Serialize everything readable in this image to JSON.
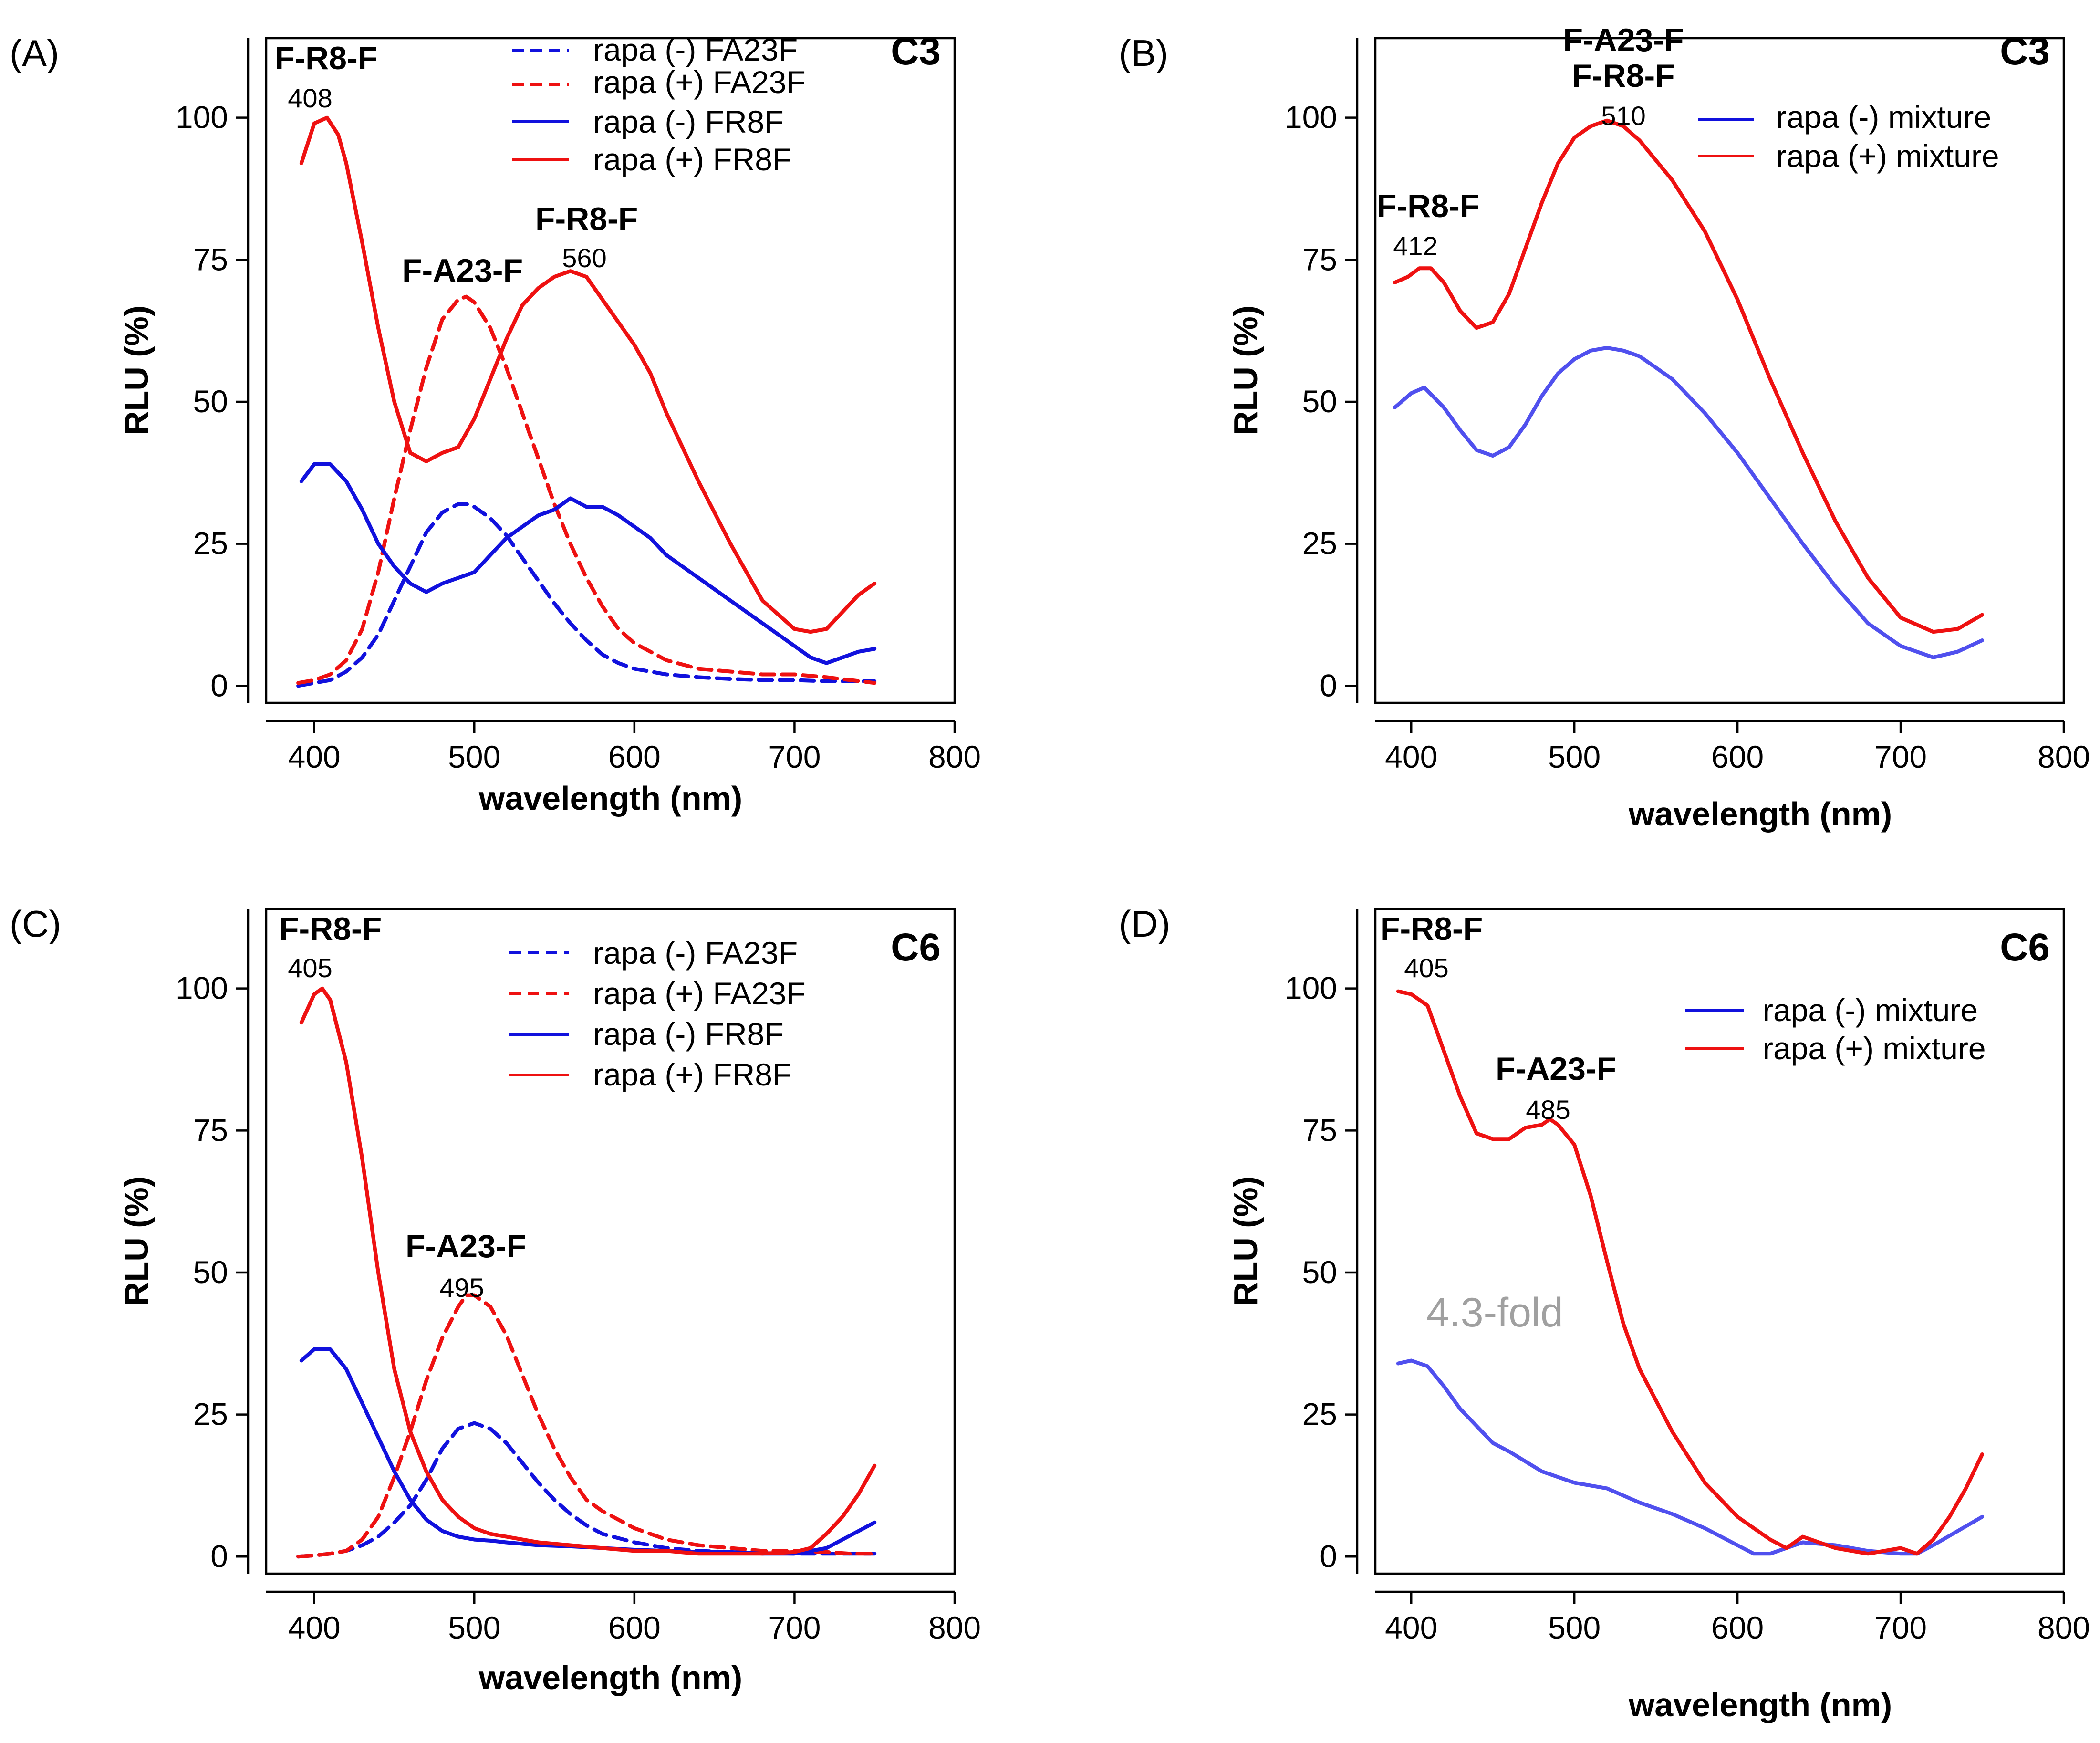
{
  "colors": {
    "red": "#ee1111",
    "blue": "#1111dd",
    "light_blue": "#5050ee",
    "gray_text": "#a0a0a0"
  },
  "chart_data": [
    {
      "panel": "(A)",
      "condition": "C3",
      "type": "line",
      "xlabel": "wavelength (nm)",
      "ylabel": "RLU (%)",
      "xlim": [
        370,
        800
      ],
      "ylim": [
        -3,
        114
      ],
      "xticks": [
        400,
        500,
        600,
        700,
        800
      ],
      "yticks": [
        0,
        25,
        50,
        75,
        100
      ],
      "legend": "top-right",
      "series": [
        {
          "name": "rapa (-) FA23F",
          "color": "#1111dd",
          "dash": true,
          "x": [
            390,
            400,
            410,
            420,
            430,
            440,
            450,
            460,
            470,
            480,
            490,
            495,
            500,
            510,
            520,
            530,
            540,
            550,
            560,
            570,
            580,
            590,
            600,
            620,
            640,
            660,
            680,
            700,
            720,
            735,
            750
          ],
          "y": [
            0,
            0.5,
            1,
            2.5,
            5,
            9,
            15,
            21,
            27,
            30.5,
            32,
            32,
            31.5,
            29.5,
            26.5,
            22.5,
            18.5,
            14.5,
            11,
            8,
            5.5,
            4,
            3,
            2,
            1.5,
            1.2,
            1,
            1,
            0.8,
            0.8,
            0.8
          ]
        },
        {
          "name": "rapa (+) FA23F",
          "color": "#ee1111",
          "dash": true,
          "x": [
            390,
            400,
            410,
            420,
            430,
            440,
            450,
            460,
            470,
            480,
            490,
            495,
            500,
            510,
            520,
            530,
            540,
            550,
            560,
            570,
            580,
            590,
            600,
            620,
            640,
            660,
            680,
            700,
            720,
            735,
            750
          ],
          "y": [
            0.5,
            1,
            2,
            4.5,
            10,
            20,
            33,
            45,
            56,
            64.5,
            68,
            68.5,
            67.5,
            63,
            56,
            48,
            40,
            32,
            25,
            19,
            14,
            10,
            7.5,
            4.5,
            3,
            2.5,
            2,
            2,
            1.5,
            1,
            0.5
          ]
        },
        {
          "name": "rapa (-) FR8F",
          "color": "#1111dd",
          "dash": false,
          "x": [
            392,
            400,
            410,
            420,
            430,
            440,
            450,
            460,
            470,
            480,
            490,
            500,
            510,
            520,
            530,
            540,
            550,
            560,
            570,
            580,
            590,
            600,
            610,
            620,
            640,
            660,
            680,
            700,
            710,
            720,
            730,
            740,
            750
          ],
          "y": [
            36,
            39,
            39,
            36,
            31,
            25,
            21,
            18,
            16.5,
            18,
            19,
            20,
            23,
            26,
            28,
            30,
            31,
            33,
            31.5,
            31.5,
            30,
            28,
            26,
            23,
            19,
            15,
            11,
            7,
            5,
            4,
            5,
            6,
            6.5
          ]
        },
        {
          "name": "rapa (+) FR8F",
          "color": "#ee1111",
          "dash": false,
          "x": [
            392,
            400,
            408,
            415,
            420,
            430,
            440,
            450,
            460,
            470,
            480,
            490,
            500,
            510,
            520,
            530,
            540,
            550,
            560,
            570,
            580,
            590,
            600,
            610,
            620,
            640,
            660,
            680,
            700,
            710,
            720,
            730,
            740,
            750
          ],
          "y": [
            92,
            99,
            100,
            97,
            92,
            78,
            63,
            50,
            41,
            39.5,
            41,
            42,
            47,
            54,
            61,
            67,
            70,
            72,
            73,
            72,
            68,
            64,
            60,
            55,
            48,
            36,
            25,
            15,
            10,
            9.5,
            10,
            13,
            16,
            18
          ]
        }
      ],
      "annotations": [
        {
          "label": "F-R8-F",
          "value": "408"
        },
        {
          "label": "F-A23-F"
        },
        {
          "label": "F-R8-F",
          "value": "560"
        }
      ]
    },
    {
      "panel": "(B)",
      "condition": "C3",
      "type": "line",
      "xlabel": "wavelength (nm)",
      "ylabel": "RLU (%)",
      "xlim": [
        378,
        800
      ],
      "ylim": [
        -3,
        114
      ],
      "xticks": [
        400,
        500,
        600,
        700,
        800
      ],
      "yticks": [
        0,
        25,
        50,
        75,
        100
      ],
      "legend": "top-right",
      "series": [
        {
          "name": "rapa (-) mixture",
          "color": "#5050ee",
          "dash": false,
          "x": [
            390,
            400,
            408,
            420,
            430,
            440,
            450,
            460,
            470,
            480,
            490,
            500,
            510,
            520,
            530,
            540,
            560,
            580,
            600,
            620,
            640,
            660,
            680,
            700,
            720,
            735,
            750
          ],
          "y": [
            49,
            51.5,
            52.5,
            49,
            45,
            41.5,
            40.5,
            42,
            46,
            51,
            55,
            57.5,
            59,
            59.5,
            59,
            58,
            54,
            48,
            41,
            33,
            25,
            17.5,
            11,
            7,
            5,
            6,
            8
          ]
        },
        {
          "name": "rapa (+) mixture",
          "color": "#ee1111",
          "dash": false,
          "x": [
            390,
            398,
            405,
            412,
            420,
            430,
            440,
            450,
            460,
            470,
            480,
            490,
            500,
            510,
            520,
            530,
            540,
            560,
            580,
            600,
            620,
            640,
            660,
            680,
            700,
            720,
            735,
            750
          ],
          "y": [
            71,
            72,
            73.5,
            73.5,
            71,
            66,
            63,
            64,
            69,
            77,
            85,
            92,
            96.5,
            98.5,
            99.5,
            98.5,
            96,
            89,
            80,
            68,
            54,
            41,
            29,
            19,
            12,
            9.5,
            10,
            12.5
          ]
        }
      ],
      "annotations": [
        {
          "label": "F-A23-F"
        },
        {
          "label": "F-R8-F",
          "value": "510"
        },
        {
          "label": "F-R8-F",
          "value": "412"
        }
      ]
    },
    {
      "panel": "(C)",
      "condition": "C6",
      "type": "line",
      "xlabel": "wavelength (nm)",
      "ylabel": "RLU (%)",
      "xlim": [
        370,
        800
      ],
      "ylim": [
        -3,
        114
      ],
      "xticks": [
        400,
        500,
        600,
        700,
        800
      ],
      "yticks": [
        0,
        25,
        50,
        75,
        100
      ],
      "legend": "top-right",
      "series": [
        {
          "name": "rapa (-) FA23F",
          "color": "#1111dd",
          "dash": true,
          "x": [
            390,
            400,
            410,
            420,
            430,
            440,
            450,
            460,
            470,
            480,
            490,
            500,
            510,
            520,
            530,
            540,
            550,
            560,
            570,
            580,
            600,
            620,
            640,
            660,
            680,
            700,
            720,
            735,
            750
          ],
          "y": [
            0,
            0.2,
            0.5,
            1,
            2,
            3.5,
            6,
            9,
            13.5,
            19,
            22.5,
            23.5,
            22.5,
            20,
            16.5,
            13,
            10,
            7.5,
            5.5,
            4,
            2.5,
            1.5,
            1,
            0.8,
            0.6,
            0.5,
            0.5,
            0.5,
            0.5
          ]
        },
        {
          "name": "rapa (+) FA23F",
          "color": "#ee1111",
          "dash": true,
          "x": [
            390,
            400,
            410,
            420,
            430,
            440,
            450,
            460,
            470,
            480,
            490,
            495,
            500,
            510,
            520,
            530,
            540,
            550,
            560,
            570,
            580,
            600,
            620,
            640,
            660,
            680,
            700,
            720,
            735,
            750
          ],
          "y": [
            0,
            0.2,
            0.5,
            1,
            3,
            7,
            14,
            22,
            31,
            38.5,
            44,
            46,
            46,
            44,
            39,
            32,
            25,
            19,
            14,
            10,
            8,
            5,
            3,
            2,
            1.5,
            1,
            1,
            0.8,
            0.5,
            0.5
          ]
        },
        {
          "name": "rapa (-) FR8F",
          "color": "#1111dd",
          "dash": false,
          "x": [
            392,
            400,
            410,
            420,
            430,
            440,
            450,
            460,
            470,
            480,
            490,
            500,
            510,
            520,
            540,
            560,
            580,
            600,
            620,
            640,
            660,
            680,
            700,
            710,
            720,
            730,
            740,
            750
          ],
          "y": [
            34.5,
            36.5,
            36.5,
            33,
            27,
            21,
            15,
            10,
            6.5,
            4.5,
            3.5,
            3,
            2.8,
            2.5,
            2,
            1.8,
            1.5,
            1.2,
            1,
            0.8,
            0.8,
            0.5,
            0.5,
            1,
            1.5,
            3,
            4.5,
            6
          ]
        },
        {
          "name": "rapa (+) FR8F",
          "color": "#ee1111",
          "dash": false,
          "x": [
            392,
            400,
            405,
            410,
            420,
            430,
            440,
            450,
            460,
            470,
            480,
            490,
            500,
            510,
            520,
            540,
            560,
            580,
            600,
            620,
            640,
            660,
            680,
            700,
            710,
            720,
            730,
            740,
            750
          ],
          "y": [
            94,
            99,
            100,
            98,
            87,
            70,
            50,
            33,
            22,
            15,
            10,
            7,
            5,
            4,
            3.5,
            2.5,
            2,
            1.5,
            1,
            1,
            0.5,
            0.5,
            0.5,
            0.8,
            1.5,
            4,
            7,
            11,
            16
          ]
        }
      ],
      "annotations": [
        {
          "label": "F-R8-F",
          "value": "405"
        },
        {
          "label": "F-A23-F",
          "value": "495"
        }
      ]
    },
    {
      "panel": "(D)",
      "condition": "C6",
      "type": "line",
      "xlabel": "wavelength (nm)",
      "ylabel": "RLU (%)",
      "xlim": [
        378,
        800
      ],
      "ylim": [
        -3,
        114
      ],
      "xticks": [
        400,
        500,
        600,
        700,
        800
      ],
      "yticks": [
        0,
        25,
        50,
        75,
        100
      ],
      "legend": "top-right",
      "fold_text": "4.3-fold",
      "series": [
        {
          "name": "rapa (-) mixture",
          "color": "#5050ee",
          "dash": false,
          "x": [
            392,
            400,
            410,
            420,
            430,
            440,
            450,
            460,
            480,
            500,
            520,
            540,
            560,
            580,
            600,
            610,
            620,
            640,
            660,
            680,
            700,
            710,
            720,
            735,
            750
          ],
          "y": [
            34,
            34.5,
            33.5,
            30,
            26,
            23,
            20,
            18.5,
            15,
            13,
            12,
            9.5,
            7.5,
            5,
            2,
            0.5,
            0.5,
            2.5,
            2,
            1,
            0.5,
            0.5,
            2,
            4.5,
            7
          ]
        },
        {
          "name": "rapa (+) mixture",
          "color": "#ee1111",
          "dash": false,
          "x": [
            392,
            400,
            410,
            420,
            430,
            440,
            450,
            460,
            470,
            480,
            485,
            490,
            500,
            510,
            520,
            530,
            540,
            560,
            580,
            600,
            620,
            630,
            640,
            650,
            660,
            680,
            700,
            710,
            720,
            730,
            740,
            750
          ],
          "y": [
            99.5,
            99,
            97,
            89,
            81,
            74.5,
            73.5,
            73.5,
            75.5,
            76,
            77,
            76,
            72.5,
            63.5,
            52,
            41,
            33,
            22,
            13,
            7,
            3,
            1.5,
            3.5,
            2.5,
            1.5,
            0.5,
            1.5,
            0.5,
            3,
            7,
            12,
            18
          ]
        }
      ],
      "annotations": [
        {
          "label": "F-R8-F",
          "value": "405"
        },
        {
          "label": "F-A23-F",
          "value": "485"
        }
      ]
    }
  ]
}
